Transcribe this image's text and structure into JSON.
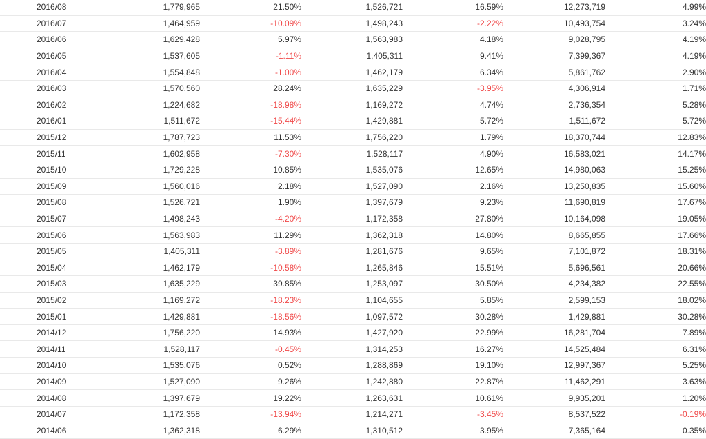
{
  "colors": {
    "text": "#333333",
    "negative": "#f04a4a",
    "row_border": "#e9e9e9"
  },
  "table": {
    "rows": [
      [
        "2016/08",
        "1,779,965",
        "21.50%",
        "1,526,721",
        "16.59%",
        "12,273,719",
        "4.99%"
      ],
      [
        "2016/07",
        "1,464,959",
        "-10.09%",
        "1,498,243",
        "-2.22%",
        "10,493,754",
        "3.24%"
      ],
      [
        "2016/06",
        "1,629,428",
        "5.97%",
        "1,563,983",
        "4.18%",
        "9,028,795",
        "4.19%"
      ],
      [
        "2016/05",
        "1,537,605",
        "-1.11%",
        "1,405,311",
        "9.41%",
        "7,399,367",
        "4.19%"
      ],
      [
        "2016/04",
        "1,554,848",
        "-1.00%",
        "1,462,179",
        "6.34%",
        "5,861,762",
        "2.90%"
      ],
      [
        "2016/03",
        "1,570,560",
        "28.24%",
        "1,635,229",
        "-3.95%",
        "4,306,914",
        "1.71%"
      ],
      [
        "2016/02",
        "1,224,682",
        "-18.98%",
        "1,169,272",
        "4.74%",
        "2,736,354",
        "5.28%"
      ],
      [
        "2016/01",
        "1,511,672",
        "-15.44%",
        "1,429,881",
        "5.72%",
        "1,511,672",
        "5.72%"
      ],
      [
        "2015/12",
        "1,787,723",
        "11.53%",
        "1,756,220",
        "1.79%",
        "18,370,744",
        "12.83%"
      ],
      [
        "2015/11",
        "1,602,958",
        "-7.30%",
        "1,528,117",
        "4.90%",
        "16,583,021",
        "14.17%"
      ],
      [
        "2015/10",
        "1,729,228",
        "10.85%",
        "1,535,076",
        "12.65%",
        "14,980,063",
        "15.25%"
      ],
      [
        "2015/09",
        "1,560,016",
        "2.18%",
        "1,527,090",
        "2.16%",
        "13,250,835",
        "15.60%"
      ],
      [
        "2015/08",
        "1,526,721",
        "1.90%",
        "1,397,679",
        "9.23%",
        "11,690,819",
        "17.67%"
      ],
      [
        "2015/07",
        "1,498,243",
        "-4.20%",
        "1,172,358",
        "27.80%",
        "10,164,098",
        "19.05%"
      ],
      [
        "2015/06",
        "1,563,983",
        "11.29%",
        "1,362,318",
        "14.80%",
        "8,665,855",
        "17.66%"
      ],
      [
        "2015/05",
        "1,405,311",
        "-3.89%",
        "1,281,676",
        "9.65%",
        "7,101,872",
        "18.31%"
      ],
      [
        "2015/04",
        "1,462,179",
        "-10.58%",
        "1,265,846",
        "15.51%",
        "5,696,561",
        "20.66%"
      ],
      [
        "2015/03",
        "1,635,229",
        "39.85%",
        "1,253,097",
        "30.50%",
        "4,234,382",
        "22.55%"
      ],
      [
        "2015/02",
        "1,169,272",
        "-18.23%",
        "1,104,655",
        "5.85%",
        "2,599,153",
        "18.02%"
      ],
      [
        "2015/01",
        "1,429,881",
        "-18.56%",
        "1,097,572",
        "30.28%",
        "1,429,881",
        "30.28%"
      ],
      [
        "2014/12",
        "1,756,220",
        "14.93%",
        "1,427,920",
        "22.99%",
        "16,281,704",
        "7.89%"
      ],
      [
        "2014/11",
        "1,528,117",
        "-0.45%",
        "1,314,253",
        "16.27%",
        "14,525,484",
        "6.31%"
      ],
      [
        "2014/10",
        "1,535,076",
        "0.52%",
        "1,288,869",
        "19.10%",
        "12,997,367",
        "5.25%"
      ],
      [
        "2014/09",
        "1,527,090",
        "9.26%",
        "1,242,880",
        "22.87%",
        "11,462,291",
        "3.63%"
      ],
      [
        "2014/08",
        "1,397,679",
        "19.22%",
        "1,263,631",
        "10.61%",
        "9,935,201",
        "1.20%"
      ],
      [
        "2014/07",
        "1,172,358",
        "-13.94%",
        "1,214,271",
        "-3.45%",
        "8,537,522",
        "-0.19%"
      ],
      [
        "2014/06",
        "1,362,318",
        "6.29%",
        "1,310,512",
        "3.95%",
        "7,365,164",
        "0.35%"
      ]
    ]
  }
}
